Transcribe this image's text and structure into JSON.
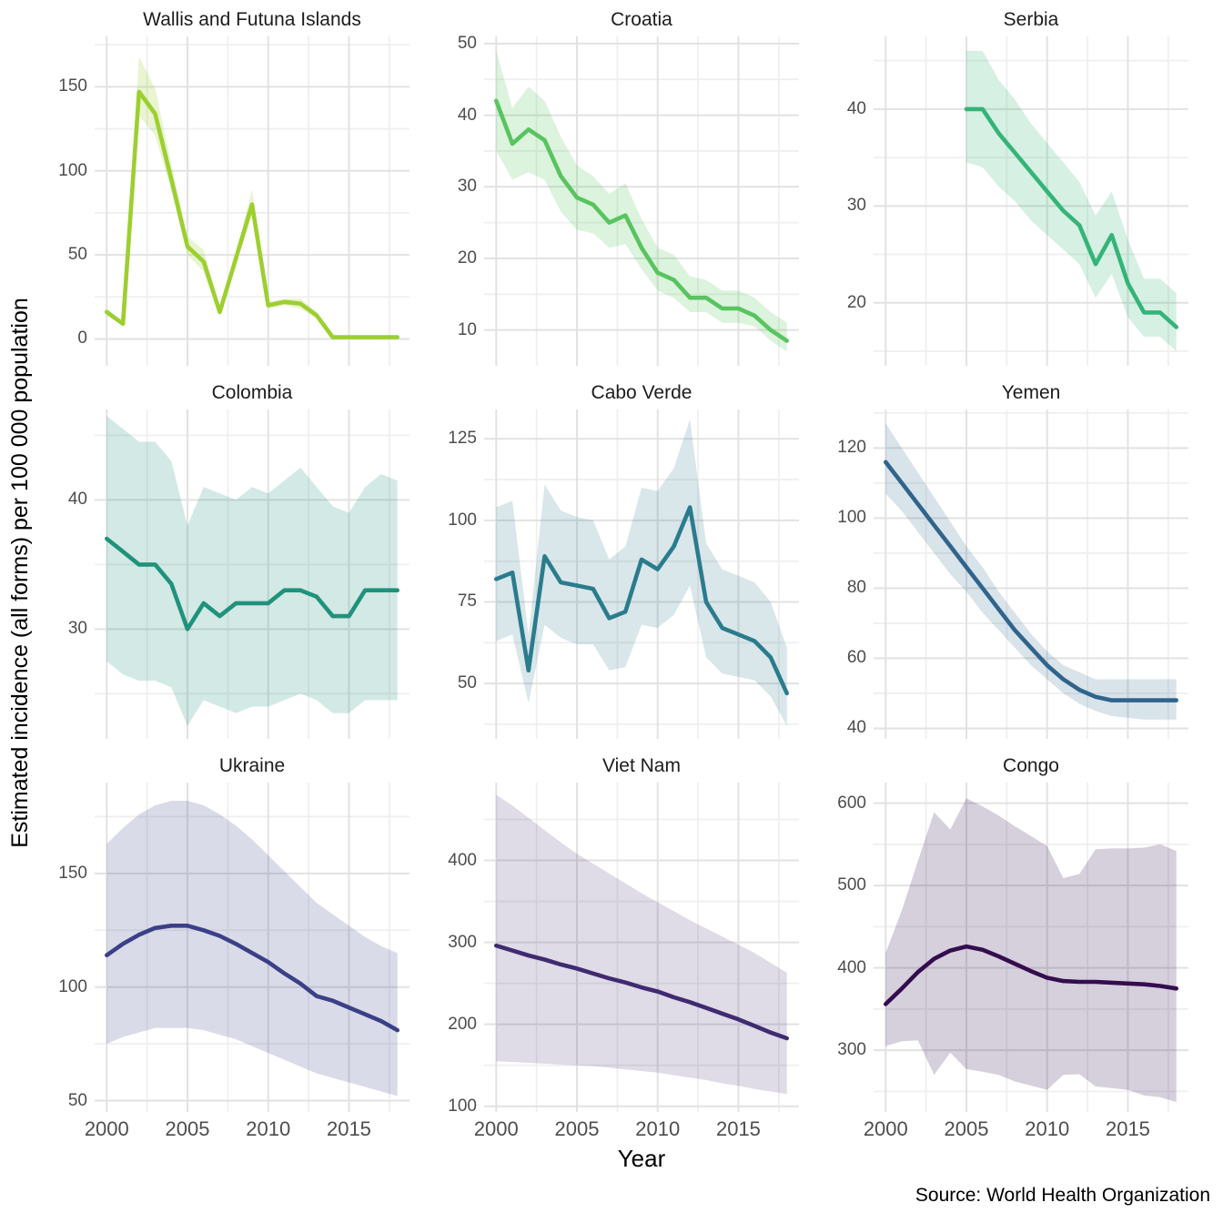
{
  "axes": {
    "y_title": "Estimated incidence (all forms) per 100 000 population",
    "x_title": "Year"
  },
  "source_caption": "Source: World Health Organization",
  "colors": {
    "background": "#ffffff",
    "grid_major": "#e2e2e2",
    "grid_minor": "#efefef",
    "tick_label": "#4d4d4d",
    "facet_title": "#1c1c1c"
  },
  "chart_data": {
    "type": "line",
    "small_multiples": true,
    "title": "",
    "xlabel": "Year",
    "ylabel": "Estimated incidence (all forms) per 100 000 population",
    "caption": "Source: World Health Organization",
    "grid": true,
    "legend": "none",
    "xlim": [
      1999.25,
      2018.75
    ],
    "x_major_ticks": [
      2000,
      2005,
      2010,
      2015
    ],
    "x_minor_ticks": [
      2002.5,
      2007.5,
      2012.5,
      2017.5
    ],
    "facets": [
      {
        "title": "Wallis and Futuna Islands",
        "line_color": "#9CCF2F",
        "ribbon_opacity": 0.22,
        "ylim": [
          -16,
          180
        ],
        "y_major_ticks": [
          0,
          50,
          100,
          150
        ],
        "y_minor_ticks": [
          25,
          75,
          125,
          175
        ],
        "years": [
          2000,
          2001,
          2002,
          2003,
          2004,
          2005,
          2006,
          2007,
          2008,
          2009,
          2010,
          2011,
          2012,
          2013,
          2014,
          2015,
          2016,
          2017,
          2018
        ],
        "values": [
          16,
          9,
          147,
          134,
          95,
          55,
          46,
          16,
          48,
          80,
          20,
          22,
          21,
          14,
          1,
          1,
          1,
          1,
          1
        ],
        "lower": [
          14,
          8,
          133,
          121,
          88,
          50,
          40,
          14,
          45,
          73,
          18,
          20,
          18,
          12,
          0.5,
          0.5,
          0.5,
          0.5,
          0.5
        ],
        "upper": [
          18,
          10,
          168,
          149,
          104,
          61,
          53,
          18,
          51,
          89,
          22,
          24,
          24,
          16,
          2,
          2,
          2,
          2,
          2
        ]
      },
      {
        "title": "Croatia",
        "line_color": "#58C45F",
        "ribbon_opacity": 0.21,
        "ylim": [
          5,
          51
        ],
        "y_major_ticks": [
          10,
          20,
          30,
          40,
          50
        ],
        "y_minor_ticks": [
          15,
          25,
          35,
          45
        ],
        "years": [
          2000,
          2001,
          2002,
          2003,
          2004,
          2005,
          2006,
          2007,
          2008,
          2009,
          2010,
          2011,
          2012,
          2013,
          2014,
          2015,
          2016,
          2017,
          2018
        ],
        "values": [
          42,
          36,
          38,
          36.5,
          31.5,
          28.5,
          27.5,
          25,
          26,
          21.5,
          18,
          17,
          14.5,
          14.5,
          13,
          13,
          12,
          10,
          8.5
        ],
        "lower": [
          35,
          31,
          32,
          31,
          26.5,
          24,
          23.5,
          21.5,
          22,
          18.5,
          15.5,
          14.5,
          12.5,
          12.5,
          11,
          11,
          10.5,
          8.5,
          7
        ],
        "upper": [
          49,
          41,
          44,
          42,
          37,
          33,
          31.5,
          29,
          30.5,
          25.5,
          21.5,
          20.5,
          17.5,
          17,
          15.5,
          15.5,
          14.5,
          12.5,
          11
        ]
      },
      {
        "title": "Serbia",
        "line_color": "#34B478",
        "ribbon_opacity": 0.2,
        "ylim": [
          13.5,
          47.5
        ],
        "y_major_ticks": [
          20,
          30,
          40
        ],
        "y_minor_ticks": [
          15,
          25,
          35,
          45
        ],
        "years": [
          2005,
          2006,
          2007,
          2008,
          2009,
          2010,
          2011,
          2012,
          2013,
          2014,
          2015,
          2016,
          2017,
          2018
        ],
        "values": [
          40,
          40,
          37.5,
          35.5,
          33.5,
          31.5,
          29.5,
          28,
          24,
          27,
          22,
          19,
          19,
          17.5
        ],
        "lower": [
          34.5,
          34,
          32,
          30.5,
          28.5,
          27,
          25.5,
          24,
          20.5,
          23,
          18.5,
          16.5,
          16.5,
          15
        ],
        "upper": [
          46,
          46,
          43,
          41,
          38.5,
          36.5,
          34.5,
          32.5,
          29,
          31.5,
          26.5,
          22.5,
          22.5,
          21
        ]
      },
      {
        "title": "Colombia",
        "line_color": "#20927C",
        "ribbon_opacity": 0.2,
        "ylim": [
          21.5,
          47
        ],
        "y_major_ticks": [
          30,
          40
        ],
        "y_minor_ticks": [
          25,
          35,
          45
        ],
        "years": [
          2000,
          2001,
          2002,
          2003,
          2004,
          2005,
          2006,
          2007,
          2008,
          2009,
          2010,
          2011,
          2012,
          2013,
          2014,
          2015,
          2016,
          2017,
          2018
        ],
        "values": [
          37,
          36,
          35,
          35,
          33.5,
          30,
          32,
          31,
          32,
          32,
          32,
          33,
          33,
          32.5,
          31,
          31,
          33,
          33,
          33
        ],
        "lower": [
          27.5,
          26.5,
          26,
          26,
          25.5,
          22.5,
          24.5,
          24,
          23.5,
          24,
          24,
          24.5,
          25,
          24.5,
          23.5,
          23.5,
          24.5,
          24.5,
          24.5
        ],
        "upper": [
          46.5,
          45.5,
          44.5,
          44.5,
          43,
          38,
          41,
          40.5,
          40,
          41,
          40.5,
          41.5,
          42.5,
          41,
          39.5,
          39,
          41,
          42,
          41.5
        ]
      },
      {
        "title": "Cabo Verde",
        "line_color": "#2A7C8D",
        "ribbon_opacity": 0.18,
        "ylim": [
          33,
          134
        ],
        "y_major_ticks": [
          50,
          75,
          100,
          125
        ],
        "y_minor_ticks": [
          37.5,
          62.5,
          87.5,
          112.5
        ],
        "years": [
          2000,
          2001,
          2002,
          2003,
          2004,
          2005,
          2006,
          2007,
          2008,
          2009,
          2010,
          2011,
          2012,
          2013,
          2014,
          2015,
          2016,
          2017,
          2018
        ],
        "values": [
          82,
          84,
          54,
          89,
          81,
          80,
          79,
          70,
          72,
          88,
          85,
          92,
          104,
          75,
          67,
          65,
          63,
          58,
          47
        ],
        "lower": [
          63,
          65,
          44,
          68,
          64,
          62,
          62,
          54,
          55,
          68,
          67,
          71,
          80,
          58,
          53,
          52,
          51,
          46,
          37
        ],
        "upper": [
          104,
          106,
          65,
          111,
          103,
          101,
          100,
          88,
          92,
          110,
          109,
          116,
          131,
          93,
          85,
          83,
          81,
          75,
          61
        ]
      },
      {
        "title": "Yemen",
        "line_color": "#2F648C",
        "ribbon_opacity": 0.18,
        "ylim": [
          37,
          131
        ],
        "y_major_ticks": [
          40,
          60,
          80,
          100,
          120
        ],
        "y_minor_ticks": [
          50,
          70,
          90,
          110,
          130
        ],
        "years": [
          2000,
          2001,
          2002,
          2003,
          2004,
          2005,
          2006,
          2007,
          2008,
          2009,
          2010,
          2011,
          2012,
          2013,
          2014,
          2015,
          2016,
          2017,
          2018
        ],
        "values": [
          116,
          110,
          104,
          98,
          92,
          86,
          80,
          74,
          68,
          63,
          58,
          54,
          51,
          49,
          48,
          48,
          48,
          48,
          48
        ],
        "lower": [
          107,
          102,
          96,
          90,
          84,
          79,
          73,
          68,
          63,
          58,
          54,
          50,
          47,
          45,
          43.5,
          43,
          42.5,
          42.5,
          42.5
        ],
        "upper": [
          127,
          120,
          113,
          106,
          99,
          92,
          86,
          79,
          73,
          67,
          62,
          58,
          56,
          54,
          54,
          54,
          54,
          54,
          54
        ]
      },
      {
        "title": "Ukraine",
        "line_color": "#3A4087",
        "ribbon_opacity": 0.19,
        "ylim": [
          45,
          190
        ],
        "y_major_ticks": [
          50,
          100,
          150
        ],
        "y_minor_ticks": [
          75,
          125,
          175
        ],
        "years": [
          2000,
          2001,
          2002,
          2003,
          2004,
          2005,
          2006,
          2007,
          2008,
          2009,
          2010,
          2011,
          2012,
          2013,
          2014,
          2015,
          2016,
          2017,
          2018
        ],
        "values": [
          114,
          119,
          123,
          126,
          127,
          127,
          125,
          122.5,
          119,
          115,
          111,
          106,
          101.5,
          96,
          94,
          91,
          88,
          85,
          81
        ],
        "lower": [
          75,
          78,
          80,
          82,
          82,
          82,
          81,
          79,
          77,
          74,
          71,
          68,
          65,
          62,
          60,
          58,
          56,
          54,
          52
        ],
        "upper": [
          163,
          170,
          176,
          180,
          182,
          182,
          180,
          176,
          171,
          165,
          158,
          151,
          144,
          137,
          132,
          127,
          122,
          118,
          115
        ]
      },
      {
        "title": "Viet Nam",
        "line_color": "#402A70",
        "ribbon_opacity": 0.17,
        "ylim": [
          93,
          495
        ],
        "y_major_ticks": [
          100,
          200,
          300,
          400
        ],
        "y_minor_ticks": [
          150,
          250,
          350,
          450
        ],
        "years": [
          2000,
          2001,
          2002,
          2003,
          2004,
          2005,
          2006,
          2007,
          2008,
          2009,
          2010,
          2011,
          2012,
          2013,
          2014,
          2015,
          2016,
          2017,
          2018
        ],
        "values": [
          296,
          290,
          284,
          279,
          273,
          268,
          262,
          256,
          251,
          245,
          240,
          233,
          227,
          220,
          213,
          206,
          198,
          190,
          183
        ],
        "lower": [
          155,
          154,
          153,
          152,
          151,
          150,
          149,
          147,
          145,
          143,
          141,
          138,
          135,
          132,
          128,
          125,
          121,
          118,
          115
        ],
        "upper": [
          480,
          467,
          452,
          437,
          422,
          408,
          396,
          384,
          372,
          360,
          349,
          338,
          327,
          317,
          307,
          297,
          287,
          275,
          263
        ]
      },
      {
        "title": "Congo",
        "line_color": "#340D4F",
        "ribbon_opacity": 0.2,
        "ylim": [
          225,
          625
        ],
        "y_major_ticks": [
          300,
          400,
          500,
          600
        ],
        "y_minor_ticks": [
          250,
          350,
          450,
          550
        ],
        "years": [
          2000,
          2001,
          2002,
          2003,
          2004,
          2005,
          2006,
          2007,
          2008,
          2009,
          2010,
          2011,
          2012,
          2013,
          2014,
          2015,
          2016,
          2017,
          2018
        ],
        "values": [
          356,
          375,
          395,
          411,
          421,
          426,
          422,
          414,
          405,
          396,
          388,
          384,
          383,
          383,
          382,
          381,
          380,
          378,
          375
        ],
        "lower": [
          305,
          311,
          312,
          270,
          297,
          277,
          274,
          270,
          262,
          257,
          252,
          270,
          271,
          256,
          254,
          252,
          245,
          243,
          237
        ],
        "upper": [
          418,
          470,
          530,
          589,
          568,
          606,
          596,
          585,
          572,
          560,
          548,
          509,
          514,
          544,
          545,
          545,
          546,
          550,
          542
        ]
      }
    ]
  }
}
